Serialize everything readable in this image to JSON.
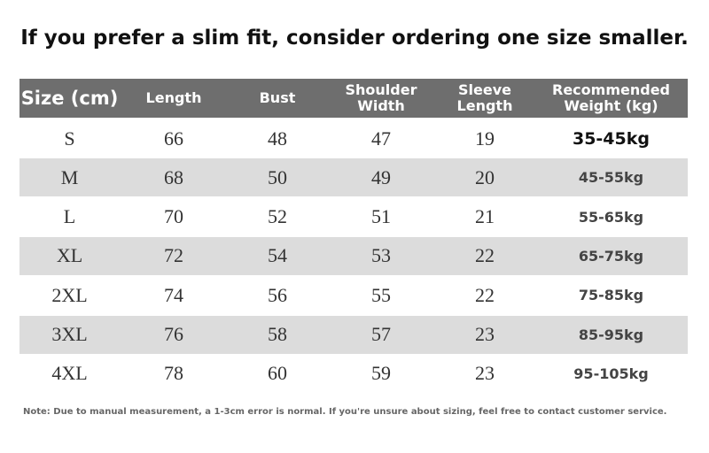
{
  "header": {
    "title": "If you prefer a slim fit, consider ordering one size smaller."
  },
  "table": {
    "columns": [
      "Size (cm)",
      "Length",
      "Bust",
      "Shoulder Width",
      "Sleeve Length",
      "Recommended Weight (kg)"
    ],
    "rows": [
      [
        "S",
        66,
        48,
        47,
        19,
        "35-45kg"
      ],
      [
        "M",
        68,
        50,
        49,
        20,
        "45-55kg"
      ],
      [
        "L",
        70,
        52,
        51,
        21,
        "55-65kg"
      ],
      [
        "XL",
        72,
        54,
        53,
        22,
        "65-75kg"
      ],
      [
        "2XL",
        74,
        56,
        55,
        22,
        "75-85kg"
      ],
      [
        "3XL",
        76,
        58,
        57,
        23,
        "85-95kg"
      ],
      [
        "4XL",
        78,
        60,
        59,
        23,
        "95-105kg"
      ]
    ]
  },
  "footer": {
    "note": "Note: Due to manual measurement, a 1-3cm error is normal. If you're unsure about sizing, feel free to contact customer service."
  }
}
